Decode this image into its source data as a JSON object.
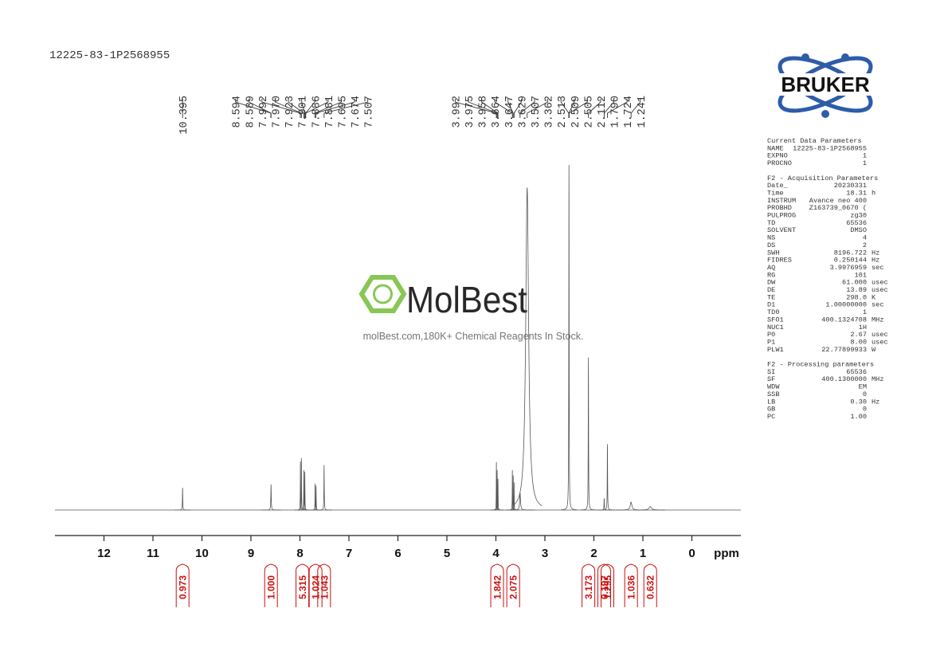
{
  "chart_data": {
    "type": "nmr",
    "title": "12225-83-1P2568955",
    "xlabel": "ppm",
    "xlim": [
      13,
      -1
    ],
    "xticks": [
      12,
      11,
      10,
      9,
      8,
      7,
      6,
      5,
      4,
      3,
      2,
      1,
      0
    ],
    "ylim": [
      0,
      100
    ],
    "color": "#555555",
    "integral_color": "#cc1111",
    "peaks": {
      "x": [
        10.395,
        8.594,
        8.589,
        7.992,
        7.97,
        7.923,
        7.901,
        7.886,
        7.881,
        7.695,
        7.674,
        7.507,
        3.992,
        3.975,
        3.958,
        3.664,
        3.647,
        3.629,
        3.507,
        3.362,
        2.513,
        2.509,
        2.505,
        2.112,
        1.79,
        1.724,
        1.241
      ],
      "labels": [
        "10.395",
        "8.594",
        "8.589",
        "7.992",
        "7.970",
        "7.923",
        "7.901",
        "7.886",
        "7.881",
        "7.695",
        "7.674",
        "7.507",
        "3.992",
        "3.975",
        "3.958",
        "3.664",
        "3.647",
        "3.629",
        "3.507",
        "3.362",
        "2.513",
        "2.509",
        "2.505",
        "2.112",
        "1.790",
        "1.724",
        "1.241"
      ]
    },
    "signals": {
      "x": [
        10.395,
        8.59,
        7.99,
        7.97,
        7.92,
        7.9,
        7.69,
        7.67,
        7.507,
        3.99,
        3.975,
        3.958,
        3.664,
        3.647,
        3.629,
        3.507,
        3.362,
        2.509,
        2.112,
        1.79,
        1.724,
        1.241,
        0.85
      ],
      "values": [
        6.4,
        7.4,
        14,
        15,
        11.5,
        11,
        7.6,
        7,
        13,
        13.8,
        11.5,
        9,
        11.5,
        10,
        8,
        5,
        93,
        99.5,
        44,
        3.4,
        19,
        2.3,
        1
      ],
      "widths": [
        0.004,
        0.005,
        0.003,
        0.003,
        0.003,
        0.003,
        0.003,
        0.003,
        0.004,
        0.003,
        0.003,
        0.003,
        0.003,
        0.003,
        0.003,
        0.01,
        0.035,
        0.004,
        0.004,
        0.004,
        0.004,
        0.02,
        0.03
      ]
    },
    "integrals": {
      "x": [
        10.395,
        8.59,
        7.95,
        7.68,
        7.507,
        3.975,
        3.647,
        2.112,
        1.79,
        1.724,
        1.241,
        0.85
      ],
      "values": [
        0.973,
        1,
        5.315,
        1.024,
        1.043,
        1.842,
        2.075,
        3.173,
        0.197,
        1.295,
        1.036,
        0.632
      ],
      "value_labels": [
        "0.973",
        "1.000",
        "5.315",
        "1.024",
        "1.043",
        "1.842",
        "2.075",
        "3.173",
        "0.197",
        "1.295",
        "1.036",
        "0.632"
      ]
    }
  },
  "logo": "BRUKER",
  "watermark": {
    "brand": "MolBest",
    "tagline": "molBest.com,180K+ Chemical Reagents In Stock."
  },
  "parameters": [
    {
      "title": "Current Data Parameters",
      "rows": [
        [
          "NAME",
          "12225-83-1P2568955"
        ],
        [
          "EXPNO",
          "1"
        ],
        [
          "PROCNO",
          "1"
        ]
      ]
    },
    {
      "title": "F2 - Acquisition Parameters",
      "rows": [
        [
          "Date_",
          "20230331"
        ],
        [
          "Time",
          "18.31",
          "h"
        ],
        [
          "INSTRUM",
          "Avance neo 400"
        ],
        [
          "PROBHD",
          "Z163739_0670 ("
        ],
        [
          "PULPROG",
          "zg30"
        ],
        [
          "TD",
          "65536"
        ],
        [
          "SOLVENT",
          "DMSO"
        ],
        [
          "NS",
          "4"
        ],
        [
          "DS",
          "2"
        ],
        [
          "SWH",
          "8196.722",
          "Hz"
        ],
        [
          "FIDRES",
          "0.250144",
          "Hz"
        ],
        [
          "AQ",
          "3.9976959",
          "sec"
        ],
        [
          "RG",
          "101"
        ],
        [
          "DW",
          "61.000",
          "usec"
        ],
        [
          "DE",
          "13.89",
          "usec"
        ],
        [
          "TE",
          "298.0",
          "K"
        ],
        [
          "D1",
          "1.00000000",
          "sec"
        ],
        [
          "TD0",
          "1"
        ],
        [
          "SFO1",
          "400.1324708",
          "MHz"
        ],
        [
          "NUC1",
          "1H"
        ],
        [
          "P0",
          "2.67",
          "usec"
        ],
        [
          "P1",
          "8.00",
          "usec"
        ],
        [
          "PLW1",
          "22.77899933",
          "W"
        ]
      ]
    },
    {
      "title": "F2 - Processing parameters",
      "rows": [
        [
          "SI",
          "65536"
        ],
        [
          "SF",
          "400.1300000",
          "MHz"
        ],
        [
          "WDW",
          "EM"
        ],
        [
          "SSB",
          "0"
        ],
        [
          "LB",
          "0.30",
          "Hz"
        ],
        [
          "GB",
          "0"
        ],
        [
          "PC",
          "1.00"
        ]
      ]
    }
  ]
}
